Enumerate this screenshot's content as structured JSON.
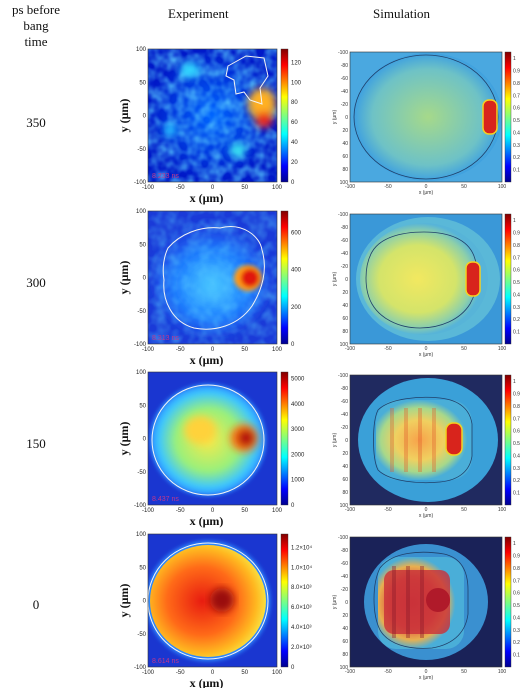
{
  "header": {
    "left_line1": "ps before bang",
    "left_line2": "time",
    "experiment": "Experiment",
    "simulation": "Simulation"
  },
  "rows": [
    {
      "label": "350",
      "stamp": "8.233 ns",
      "exp_cbar": [
        "0",
        "20",
        "40",
        "60",
        "80",
        "100",
        "120"
      ]
    },
    {
      "label": "300",
      "stamp": "8.313 ns",
      "exp_cbar": [
        "0",
        "200",
        "400",
        "600"
      ]
    },
    {
      "label": "150",
      "stamp": "8.437 ns",
      "exp_cbar": [
        "0",
        "1000",
        "2000",
        "3000",
        "4000",
        "5000"
      ]
    },
    {
      "label": "0",
      "stamp": "8.614 ns",
      "exp_cbar": [
        "0",
        "2.0×10³",
        "4.0×10³",
        "6.0×10³",
        "8.0×10³",
        "1.0×10⁴",
        "1.2×10⁴"
      ]
    }
  ],
  "exp_axes": {
    "xlabel": "x (μm)",
    "ylabel": "y (μm)",
    "xticks": [
      "-100",
      "-50",
      "0",
      "50",
      "100"
    ],
    "yticks": [
      "100",
      "50",
      "0",
      "-50",
      "-100"
    ]
  },
  "sim_axes": {
    "xlabel": "x (μm)",
    "ylabel": "y (μm)",
    "xticks": [
      "-100",
      "-50",
      "0",
      "50",
      "100"
    ],
    "yticks": [
      "-100",
      "-80",
      "-60",
      "-40",
      "-20",
      "0",
      "20",
      "40",
      "60",
      "80",
      "100"
    ],
    "cbar": [
      "0.1",
      "0.2",
      "0.3",
      "0.4",
      "0.5",
      "0.6",
      "0.7",
      "0.8",
      "0.9",
      "1"
    ]
  }
}
